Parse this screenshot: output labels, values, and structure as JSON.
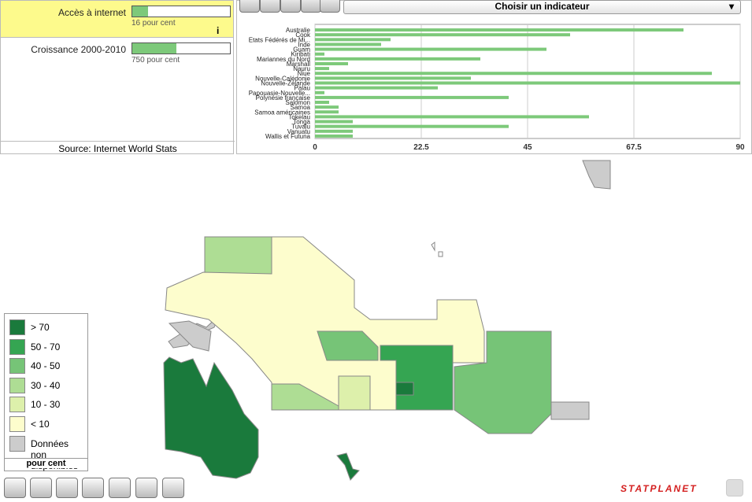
{
  "panel": {
    "indicators": [
      {
        "name": "Accès à internet",
        "value_label": "16 pour cent",
        "info": "i"
      },
      {
        "name": "Croissance 2000-2010",
        "value_label": "750 pour cent"
      }
    ],
    "source": "Source: Internet World Stats"
  },
  "selector": "Choisir un indicateur",
  "chart_data": {
    "type": "bar",
    "orientation": "horizontal",
    "categories": [
      "Australie",
      "Cook",
      "Etats Fédérés de Mi...",
      "Inde",
      "Guam",
      "Kiribati",
      "Mariannes du Nord",
      "Marshall",
      "Nauru",
      "Niue",
      "Nouvelle-Calédonie",
      "Nouvelle-Zélande",
      "Palau",
      "Papouasie-Nouvelle...",
      "Polynésie française",
      "Salomon",
      "Samoa",
      "Samoa américaines",
      "Tokelau",
      "Tonga",
      "Tuvalu",
      "Vanuatu",
      "Wallis et Futuna"
    ],
    "values": [
      78,
      54,
      16,
      14,
      49,
      2,
      35,
      7,
      3,
      84,
      33,
      90,
      26,
      2,
      41,
      3,
      5,
      5,
      58,
      8,
      41,
      8,
      8
    ],
    "color": "#7dc97a",
    "xlim": [
      0,
      90
    ],
    "xticks": [
      0,
      22.5,
      45,
      67.5,
      90
    ],
    "grid": true
  },
  "legend": {
    "title": "pour cent",
    "items": [
      {
        "label": "> 70",
        "color": "#1a7a3c"
      },
      {
        "label": "50 - 70",
        "color": "#35a552"
      },
      {
        "label": "40 - 50",
        "color": "#76c477"
      },
      {
        "label": "30 - 40",
        "color": "#aedd94"
      },
      {
        "label": "10 - 30",
        "color": "#ddf0ab"
      },
      {
        "label": "< 10",
        "color": "#fdfdcd"
      },
      {
        "label": "Données non disponibles",
        "color": "#cccccc"
      }
    ]
  },
  "brand": "STATPLANET"
}
